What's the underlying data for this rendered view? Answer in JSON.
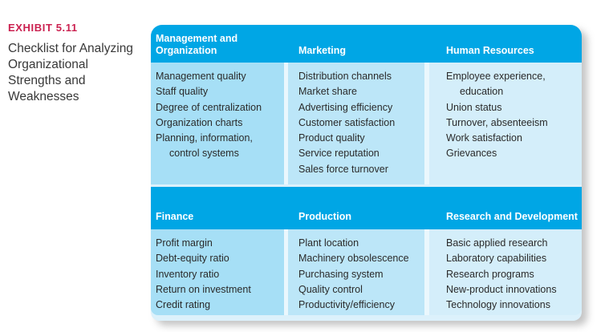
{
  "exhibit": {
    "label": "EXHIBIT 5.11",
    "title": "Checklist for Analyzing Organizational Strengths and Weaknesses"
  },
  "table": {
    "rows": [
      {
        "columns": [
          {
            "header": "Management and Organization",
            "items": [
              "Management quality",
              "Staff quality",
              "Degree of centralization",
              "Organization charts",
              "Planning, information, control systems"
            ]
          },
          {
            "header": "Marketing",
            "items": [
              "Distribution channels",
              "Market share",
              "Advertising efficiency",
              "Customer satisfaction",
              "Product quality",
              "Service reputation",
              "Sales force turnover"
            ]
          },
          {
            "header": "Human Resources",
            "items": [
              "Employee experience, education",
              "Union status",
              "Turnover, absenteeism",
              "Work satisfaction",
              "Grievances"
            ]
          }
        ]
      },
      {
        "columns": [
          {
            "header": "Finance",
            "items": [
              "Profit margin",
              "Debt-equity ratio",
              "Inventory ratio",
              "Return on investment",
              "Credit rating"
            ]
          },
          {
            "header": "Production",
            "items": [
              "Plant location",
              "Machinery obsolescence",
              "Purchasing system",
              "Quality control",
              "Productivity/efficiency"
            ]
          },
          {
            "header": "Research and Development",
            "items": [
              "Basic applied research",
              "Laboratory capabilities",
              "Research programs",
              "New-product innovations",
              "Technology innovations"
            ]
          }
        ]
      }
    ]
  },
  "colors": {
    "header_blue": "#00A6E5",
    "col1_bg": "#A6DFF6",
    "col2_bg": "#BCE6F8",
    "col3_bg": "#D4EEFA",
    "gutter": "#EAF7FD",
    "card_bg": "#DCF1FB",
    "accent_red": "#CB2150",
    "title_text": "#383838",
    "body_text": "#2A2A2A"
  }
}
